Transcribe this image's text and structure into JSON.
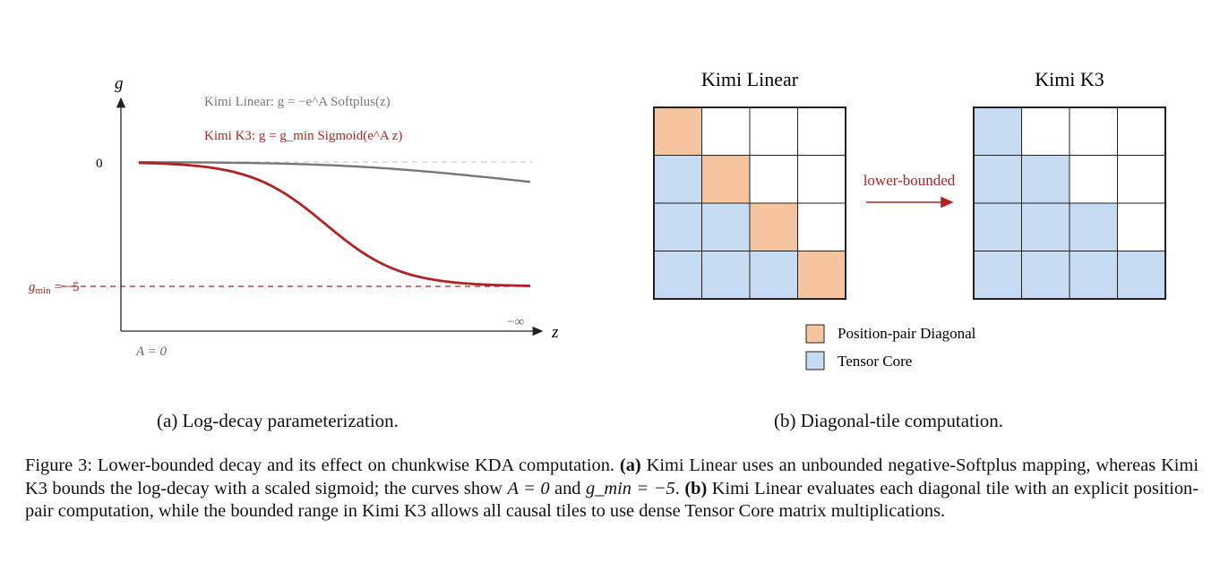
{
  "panel_a": {
    "y_axis_label": "g",
    "x_axis_label": "z",
    "zero_tick": "0",
    "gmin_label": "g_min = −5",
    "neg_inf_label": "−∞",
    "a_label": "A = 0",
    "legend": {
      "kimi_linear": "Kimi Linear: g = −e^A Softplus(z)",
      "kimi_k3": "Kimi K3: g = g_min Sigmoid(e^A z)"
    },
    "colors": {
      "kimi_linear": "#777777",
      "kimi_k3": "#b22222",
      "zero_line": "#cccccc"
    },
    "chart_data": {
      "type": "line",
      "x_range": [
        -2.5,
        4.0
      ],
      "y_range": [
        -5.6,
        0.4
      ],
      "gmin": -5,
      "A": 0,
      "series": [
        {
          "name": "Kimi Linear",
          "formula": "g = -e^A Softplus(z)"
        },
        {
          "name": "Kimi K3",
          "formula": "g = g_min Sigmoid(e^A z)"
        }
      ]
    },
    "caption": "(a) Log-decay parameterization."
  },
  "panel_b": {
    "left_title": "Kimi Linear",
    "right_title": "Kimi K3",
    "arrow_label": "lower-bounded",
    "grid_size": 4,
    "left_grid": [
      [
        "orange",
        "white",
        "white",
        "white"
      ],
      [
        "blue",
        "orange",
        "white",
        "white"
      ],
      [
        "blue",
        "blue",
        "orange",
        "white"
      ],
      [
        "blue",
        "blue",
        "blue",
        "orange"
      ]
    ],
    "right_grid": [
      [
        "blue",
        "white",
        "white",
        "white"
      ],
      [
        "blue",
        "blue",
        "white",
        "white"
      ],
      [
        "blue",
        "blue",
        "blue",
        "white"
      ],
      [
        "blue",
        "blue",
        "blue",
        "blue"
      ]
    ],
    "legend": {
      "orange": "Position-pair Diagonal",
      "blue": "Tensor Core"
    },
    "colors": {
      "orange": "#f5c5a0",
      "blue": "#c6daf2",
      "white": "#ffffff",
      "arrow": "#b22222"
    },
    "caption": "(b) Diagonal-tile computation."
  },
  "figure_caption": {
    "prefix": "Figure 3: Lower-bounded decay and its effect on chunkwise KDA computation. ",
    "a_tag": "(a)",
    "a_text": " Kimi Linear uses an unbounded negative-Softplus mapping, whereas Kimi K3 bounds the log-decay with a scaled sigmoid; the curves show ",
    "a_math1": "A = 0",
    "a_mid": " and ",
    "a_math2": "g_min = −5",
    "a_end": ". ",
    "b_tag": "(b)",
    "b_text": " Kimi Linear evaluates each diagonal tile with an explicit position-pair computation, while the bounded range in Kimi K3 allows all causal tiles to use dense Tensor Core matrix multiplications."
  }
}
